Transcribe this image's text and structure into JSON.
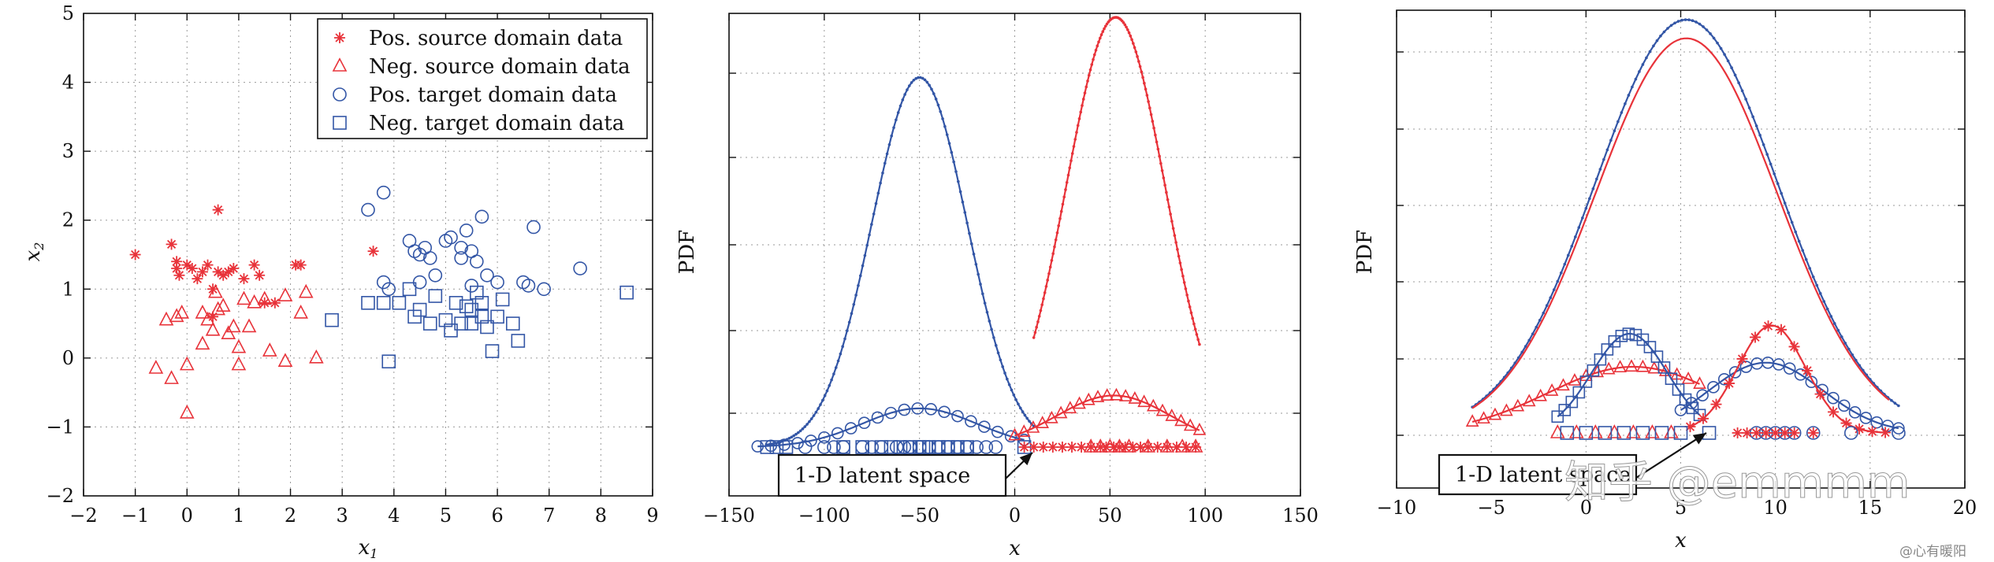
{
  "colors": {
    "red": "#e8333a",
    "blue": "#3356a6"
  },
  "watermark": {
    "main": "知乎 @emmmm",
    "corner": "@心有暖阳"
  },
  "chart_data": [
    {
      "type": "scatter",
      "xlabel": "x1",
      "ylabel": "x2",
      "xlim": [
        -2,
        9
      ],
      "ylim": [
        -2,
        5
      ],
      "xticks": [
        "−2",
        "−1",
        "0",
        "1",
        "2",
        "3",
        "4",
        "5",
        "6",
        "7",
        "8",
        "9"
      ],
      "yticks": [
        "−2",
        "−1",
        "0",
        "1",
        "2",
        "3",
        "4",
        "5"
      ],
      "grid": true,
      "legend_position": "top-right",
      "series": [
        {
          "name": "Pos. source domain data",
          "marker": "star",
          "color": "red",
          "points": [
            [
              -1,
              1.5
            ],
            [
              -0.3,
              1.65
            ],
            [
              -0.2,
              1.3
            ],
            [
              -0.2,
              1.4
            ],
            [
              -0.15,
              1.2
            ],
            [
              0,
              1.35
            ],
            [
              0.1,
              1.3
            ],
            [
              0.2,
              1.15
            ],
            [
              0.3,
              1.25
            ],
            [
              0.4,
              1.35
            ],
            [
              0.5,
              1.0
            ],
            [
              0.6,
              2.15
            ],
            [
              0.6,
              1.25
            ],
            [
              0.7,
              1.2
            ],
            [
              0.8,
              1.25
            ],
            [
              0.9,
              1.3
            ],
            [
              0.5,
              0.6
            ],
            [
              1.1,
              1.15
            ],
            [
              1.3,
              1.35
            ],
            [
              1.4,
              1.2
            ],
            [
              1.5,
              0.8
            ],
            [
              1.7,
              0.8
            ],
            [
              2.1,
              1.35
            ],
            [
              2.2,
              1.35
            ],
            [
              3.6,
              1.55
            ]
          ]
        },
        {
          "name": "Neg. source domain data",
          "marker": "triangle",
          "color": "red",
          "points": [
            [
              -0.6,
              -0.15
            ],
            [
              -0.4,
              0.55
            ],
            [
              -0.3,
              -0.3
            ],
            [
              -0.2,
              0.6
            ],
            [
              -0.1,
              0.65
            ],
            [
              0,
              -0.8
            ],
            [
              0,
              -0.1
            ],
            [
              0.3,
              0.2
            ],
            [
              0.3,
              0.65
            ],
            [
              0.4,
              0.55
            ],
            [
              0.5,
              0.4
            ],
            [
              0.55,
              0.95
            ],
            [
              0.6,
              0.7
            ],
            [
              0.7,
              0.75
            ],
            [
              0.8,
              0.35
            ],
            [
              0.9,
              0.45
            ],
            [
              1.0,
              -0.1
            ],
            [
              1.0,
              0.15
            ],
            [
              1.1,
              0.85
            ],
            [
              1.2,
              0.45
            ],
            [
              1.3,
              0.8
            ],
            [
              1.5,
              0.85
            ],
            [
              1.6,
              0.1
            ],
            [
              1.9,
              0.9
            ],
            [
              1.9,
              -0.05
            ],
            [
              2.2,
              0.65
            ],
            [
              2.3,
              0.95
            ],
            [
              2.5,
              0.0
            ]
          ]
        },
        {
          "name": "Pos. target domain data",
          "marker": "circle",
          "color": "blue",
          "points": [
            [
              3.5,
              2.15
            ],
            [
              3.8,
              2.4
            ],
            [
              3.8,
              1.1
            ],
            [
              3.9,
              1.0
            ],
            [
              4.3,
              1.7
            ],
            [
              4.4,
              1.55
            ],
            [
              4.5,
              1.5
            ],
            [
              4.5,
              1.1
            ],
            [
              4.6,
              1.6
            ],
            [
              4.7,
              1.45
            ],
            [
              4.8,
              1.2
            ],
            [
              5.0,
              1.7
            ],
            [
              5.1,
              1.75
            ],
            [
              5.3,
              1.45
            ],
            [
              5.3,
              1.6
            ],
            [
              5.4,
              1.85
            ],
            [
              5.5,
              1.05
            ],
            [
              5.5,
              1.55
            ],
            [
              5.6,
              1.4
            ],
            [
              5.7,
              2.05
            ],
            [
              5.8,
              1.2
            ],
            [
              6.0,
              1.1
            ],
            [
              6.5,
              1.1
            ],
            [
              6.6,
              1.05
            ],
            [
              6.7,
              1.9
            ],
            [
              6.9,
              1.0
            ],
            [
              7.6,
              1.3
            ]
          ]
        },
        {
          "name": "Neg. target domain data",
          "marker": "square",
          "color": "blue",
          "points": [
            [
              2.8,
              0.55
            ],
            [
              3.5,
              0.8
            ],
            [
              3.8,
              0.8
            ],
            [
              3.9,
              -0.05
            ],
            [
              4.1,
              0.8
            ],
            [
              4.3,
              1.0
            ],
            [
              4.4,
              0.6
            ],
            [
              4.5,
              0.7
            ],
            [
              4.7,
              0.5
            ],
            [
              4.8,
              0.9
            ],
            [
              5.0,
              0.55
            ],
            [
              5.1,
              0.4
            ],
            [
              5.2,
              0.8
            ],
            [
              5.3,
              0.5
            ],
            [
              5.4,
              0.75
            ],
            [
              5.5,
              0.5
            ],
            [
              5.5,
              0.7
            ],
            [
              5.6,
              0.95
            ],
            [
              5.7,
              0.6
            ],
            [
              5.7,
              0.8
            ],
            [
              5.8,
              0.45
            ],
            [
              5.9,
              0.1
            ],
            [
              6.0,
              0.6
            ],
            [
              6.1,
              0.85
            ],
            [
              6.3,
              0.5
            ],
            [
              6.4,
              0.25
            ],
            [
              8.5,
              0.95
            ]
          ]
        }
      ]
    },
    {
      "type": "line",
      "xlabel": "x",
      "ylabel": "PDF",
      "xlim": [
        -150,
        150
      ],
      "xticks": [
        "−150",
        "−100",
        "−50",
        "0",
        "50",
        "100",
        "150"
      ],
      "grid": true,
      "annotation": "1-D latent space",
      "series": [
        {
          "color": "blue",
          "marker": "dot",
          "kind": "pdf",
          "mean": -50,
          "sd": 25,
          "amp": 0.86,
          "x_range": [
            -130,
            10
          ]
        },
        {
          "color": "red",
          "marker": "dot",
          "kind": "pdf",
          "mean": 53,
          "sd": 26,
          "amp": 1.0,
          "x_range": [
            10,
            97
          ]
        },
        {
          "color": "blue",
          "marker": "circle",
          "kind": "pdf",
          "mean": -50,
          "sd": 30,
          "amp": 0.09,
          "x_range": [
            -135,
            5
          ]
        },
        {
          "color": "red",
          "marker": "triangle",
          "kind": "pdf",
          "mean": 52,
          "sd": 30,
          "amp": 0.12,
          "x_range": [
            0,
            97
          ]
        },
        {
          "color": "blue",
          "marker": "circle",
          "kind": "points_at_zero",
          "x": [
            -110,
            -100,
            -95,
            -90,
            -80,
            -75,
            -70,
            -62,
            -58,
            -55,
            -50,
            -45,
            -40,
            -35,
            -30,
            -25,
            -20,
            -15,
            -10
          ]
        },
        {
          "color": "blue",
          "marker": "square",
          "kind": "points_at_zero",
          "x": [
            -130,
            -125,
            -120,
            -90,
            -80,
            -70,
            -65,
            -60,
            -55,
            -50,
            -48,
            -45,
            -40,
            -35,
            -30,
            -25,
            5
          ]
        },
        {
          "color": "red",
          "marker": "star",
          "kind": "points_at_zero",
          "x": [
            5,
            10,
            15,
            20,
            25,
            30,
            35,
            40,
            45,
            48,
            52,
            55,
            58,
            62,
            66,
            70,
            75,
            80,
            85,
            90,
            95
          ]
        },
        {
          "color": "red",
          "marker": "triangle",
          "kind": "points_at_zero",
          "x": [
            40,
            45,
            50,
            55,
            60,
            70,
            80,
            88,
            95
          ]
        }
      ]
    },
    {
      "type": "line",
      "xlabel": "x",
      "ylabel": "PDF",
      "xlim": [
        -10,
        20
      ],
      "xticks": [
        "−10",
        "−5",
        "0",
        "5",
        "10",
        "15",
        "20"
      ],
      "grid": true,
      "annotation": "1-D latent space",
      "series": [
        {
          "color": "blue",
          "marker": "dot",
          "kind": "pdf",
          "mean": 5.3,
          "sd": 4.8,
          "amp": 1.0,
          "x_range": [
            -6,
            16.5
          ]
        },
        {
          "color": "red",
          "marker": "none",
          "kind": "pdf",
          "mean": 5.3,
          "sd": 4.8,
          "amp": 0.955,
          "x_range": [
            -6,
            16
          ]
        },
        {
          "color": "red",
          "marker": "triangle",
          "kind": "pdf",
          "mean": 2.5,
          "sd": 4.5,
          "amp": 0.16,
          "x_range": [
            -6,
            6
          ]
        },
        {
          "color": "blue",
          "marker": "square",
          "kind": "pdf",
          "mean": 2.3,
          "sd": 2.0,
          "amp": 0.24,
          "x_range": [
            -1.5,
            6
          ]
        },
        {
          "color": "blue",
          "marker": "circle",
          "kind": "pdf",
          "mean": 9.5,
          "sd": 3.0,
          "amp": 0.17,
          "x_range": [
            5,
            16.5
          ]
        },
        {
          "color": "red",
          "marker": "star",
          "kind": "pdf",
          "mean": 9.8,
          "sd": 1.8,
          "amp": 0.26,
          "x_range": [
            5.5,
            15.8
          ]
        },
        {
          "color": "red",
          "marker": "triangle",
          "kind": "points_at_zero",
          "x": [
            -1.5,
            -0.5,
            0.5,
            1.5,
            2.5,
            3.5,
            4.5
          ]
        },
        {
          "color": "blue",
          "marker": "square",
          "kind": "points_at_zero",
          "x": [
            -1,
            0,
            1,
            2,
            3,
            4,
            5,
            6.5
          ]
        },
        {
          "color": "blue",
          "marker": "circle",
          "kind": "points_at_zero",
          "x": [
            9,
            9.5,
            10,
            10.5,
            11,
            12,
            14,
            16.5
          ]
        },
        {
          "color": "red",
          "marker": "star",
          "kind": "points_at_zero",
          "x": [
            8,
            8.5,
            9,
            9.5,
            10,
            10.5,
            11,
            12
          ]
        }
      ]
    }
  ]
}
